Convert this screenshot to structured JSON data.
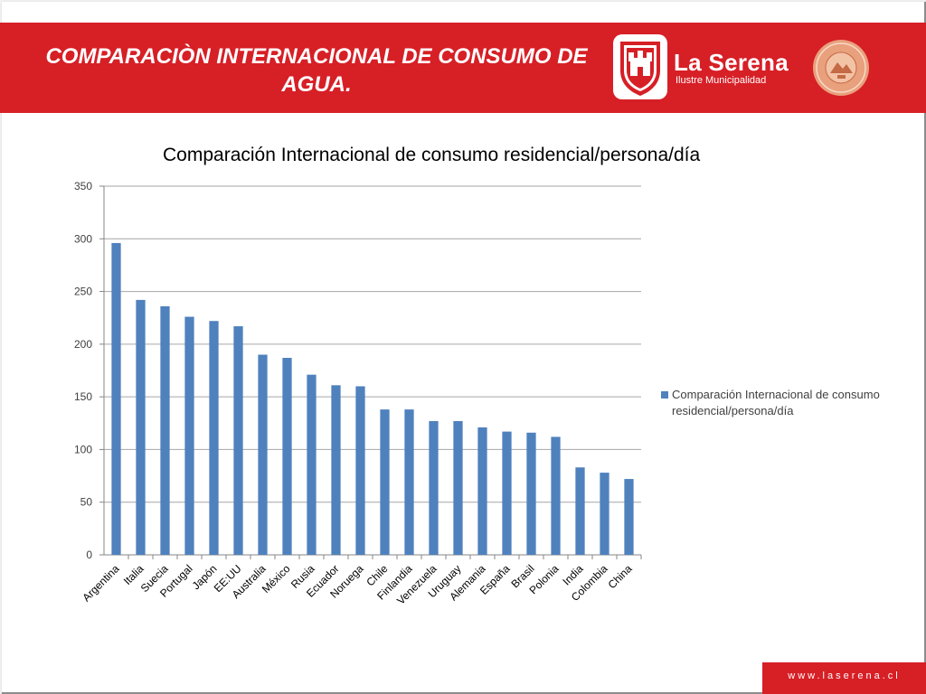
{
  "slide": {
    "title": "COMPARACIÒN INTERNACIONAL DE CONSUMO DE AGUA.",
    "brand_name": "La Serena",
    "brand_subtitle": "Ilustre Municipalidad",
    "footer_url": "www.laserena.cl"
  },
  "colors": {
    "header_red": "#d71f26",
    "bar_blue": "#4f81bd",
    "gridline": "#a6a6a6"
  },
  "chart_data": {
    "type": "bar",
    "title": "Comparación Internacional de consumo residencial/persona/día",
    "xlabel": "",
    "ylabel": "",
    "ylim": [
      0,
      350
    ],
    "yticks": [
      0,
      50,
      100,
      150,
      200,
      250,
      300,
      350
    ],
    "grid": true,
    "legend_position": "right",
    "categories": [
      "Argentina",
      "Italia",
      "Suecia",
      "Portugal",
      "Japón",
      "EE:UU",
      "Australia",
      "México",
      "Rusia",
      "Ecuador",
      "Noruega",
      "Chile",
      "Finlandia",
      "Venezuela",
      "Uruguay",
      "Alemania",
      "España",
      "Brasil",
      "Polonia",
      "India",
      "Colombia",
      "China"
    ],
    "series": [
      {
        "name": "Comparación Internacional de consumo residencial/persona/día",
        "color": "#4f81bd",
        "values": [
          296,
          242,
          236,
          226,
          222,
          217,
          190,
          187,
          171,
          161,
          160,
          138,
          138,
          127,
          127,
          121,
          117,
          116,
          112,
          83,
          78,
          72
        ]
      }
    ]
  }
}
